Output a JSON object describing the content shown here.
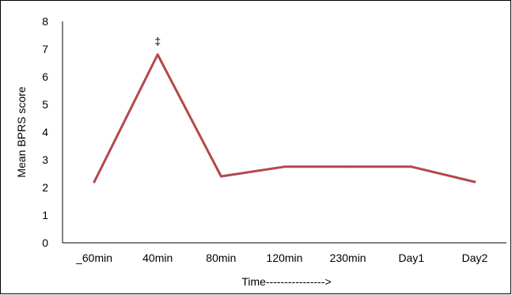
{
  "chart_data": {
    "type": "line",
    "title": "",
    "xlabel": "Time---------------->",
    "ylabel": "Mean BPRS score",
    "categories": [
      "_60min",
      "40min",
      "80min",
      "120min",
      "230min",
      "Day1",
      "Day2"
    ],
    "series": [
      {
        "values": [
          2.2,
          6.8,
          2.4,
          2.75,
          2.75,
          2.75,
          2.2
        ],
        "color": "#B5474B"
      }
    ],
    "ylim": [
      0,
      8
    ],
    "yticks": [
      0,
      1,
      2,
      3,
      4,
      5,
      6,
      7,
      8
    ],
    "annotations": [
      {
        "category": "40min",
        "text": "‡"
      }
    ],
    "grid": false,
    "legend": "none"
  }
}
